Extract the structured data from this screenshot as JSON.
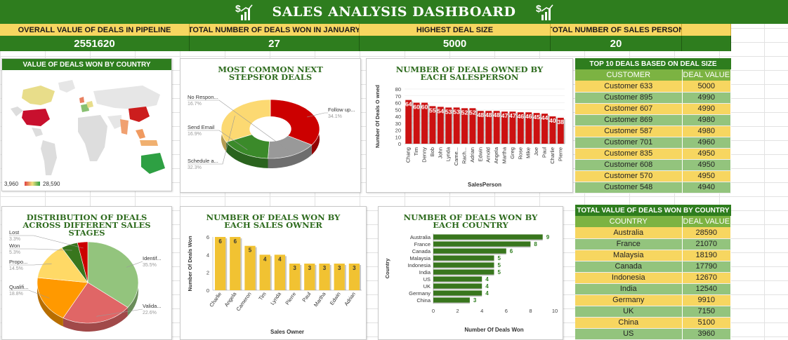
{
  "dashboard": {
    "title": "SALES ANALYSIS DASHBOARD"
  },
  "kpis": [
    {
      "label": "OVERALL VALUE OF DEALS IN PIPELINE",
      "value": "2551620"
    },
    {
      "label": "TOTAL NUMBER OF DEALS WON IN JANUARY",
      "value": "27"
    },
    {
      "label": "HIGHEST DEAL SIZE",
      "value": "5000"
    },
    {
      "label": "TOTAL NUMBER OF SALES PERSON",
      "value": "20"
    }
  ],
  "map": {
    "title": "VALUE OF DEALS WON BY COUNTRY",
    "legend_min": "3,960",
    "legend_max": "28,590",
    "colors": {
      "low": "#e04040",
      "mid": "#f0e080",
      "high": "#2ea043"
    }
  },
  "top_deals": {
    "title": "TOP 10 DEALS BASED ON DEAL SIZE",
    "headers": [
      "CUSTOMER",
      "DEAL VALUE"
    ],
    "rows": [
      [
        "Customer 633",
        "5000"
      ],
      [
        "Customer 895",
        "4990"
      ],
      [
        "Customer 607",
        "4990"
      ],
      [
        "Customer 869",
        "4980"
      ],
      [
        "Customer 587",
        "4980"
      ],
      [
        "Customer 701",
        "4960"
      ],
      [
        "Customer 835",
        "4950"
      ],
      [
        "Customer 608",
        "4950"
      ],
      [
        "Customer 570",
        "4950"
      ],
      [
        "Customer 548",
        "4940"
      ]
    ]
  },
  "country_value": {
    "title": "TOTAL VALUE OF DEALS WON BY COUNTRY",
    "headers": [
      "COUNTRY",
      "DEAL VALUE"
    ],
    "rows": [
      [
        "Australia",
        "28590"
      ],
      [
        "France",
        "21070"
      ],
      [
        "Malaysia",
        "18190"
      ],
      [
        "Canada",
        "17790"
      ],
      [
        "Indonesia",
        "12670"
      ],
      [
        "India",
        "12540"
      ],
      [
        "Germany",
        "9910"
      ],
      [
        "UK",
        "7150"
      ],
      [
        "China",
        "5100"
      ],
      [
        "US",
        "3960"
      ]
    ]
  },
  "chart_data": [
    {
      "id": "next_steps",
      "type": "pie",
      "title": "MOST COMMON NEXT STEPSFOR DEALS",
      "labels": [
        "Follow up...",
        "No Respon...",
        "Send Email",
        "Schedule a..."
      ],
      "percent_labels": [
        "34.1%",
        "16.7%",
        "16.9%",
        "32.3%"
      ],
      "values": [
        34.1,
        16.7,
        16.9,
        32.3
      ],
      "colors": [
        "#cc0000",
        "#999999",
        "#3b8a2a",
        "#fcd972"
      ]
    },
    {
      "id": "deals_owned",
      "type": "bar",
      "title": "NUMBER OF DEALS OWNED BY EACH SALESPERSON",
      "xlabel": "SalesPerson",
      "ylabel": "Number Of Deals O wned",
      "ylim": [
        0,
        80
      ],
      "yticks": [
        0,
        10,
        20,
        30,
        40,
        50,
        60,
        70,
        80
      ],
      "categories": [
        "Chang",
        "Tim",
        "Denny",
        "Bob",
        "John",
        "Lynda",
        "Came...",
        "Rach...",
        "Adrian",
        "Edwin",
        "Arnold",
        "Angela",
        "Martha",
        "Greg",
        "Rose",
        "Mike",
        "Joe",
        "Paul",
        "Charlie",
        "Pierre"
      ],
      "values": [
        64,
        60,
        60,
        55,
        54,
        53,
        53,
        52,
        52,
        48,
        48,
        48,
        47,
        47,
        46,
        46,
        45,
        44,
        40,
        38
      ],
      "color": "#cc1111"
    },
    {
      "id": "stages",
      "type": "pie",
      "title": "DISTRIBUTION OF DEALS ACROSS DIFFERENT SALES STAGES",
      "labels": [
        "Identif...",
        "Valida...",
        "Qualifi...",
        "Propo...",
        "Won",
        "Lost"
      ],
      "percent_labels": [
        "35.5%",
        "22.6%",
        "18.8%",
        "14.5%",
        "5.3%",
        "3.3%"
      ],
      "values": [
        35.5,
        22.6,
        18.8,
        14.5,
        5.3,
        3.3
      ],
      "colors": [
        "#93c47d",
        "#e06666",
        "#ff9900",
        "#ffd966",
        "#38761d",
        "#cc0000"
      ]
    },
    {
      "id": "won_owner",
      "type": "bar",
      "title": "NUMBER OF DEALS WON BY EACH SALES OWNER",
      "xlabel": "Sales Owner",
      "ylabel": "Number Of Deals Won",
      "ylim": [
        0,
        6
      ],
      "yticks": [
        0,
        2,
        4,
        6
      ],
      "categories": [
        "Charlie",
        "Angela",
        "Cameron",
        "Tim",
        "Lynda",
        "Pierre",
        "Paul",
        "Martha",
        "Edwin",
        "Adrian"
      ],
      "values": [
        6,
        6,
        5,
        4,
        4,
        3,
        3,
        3,
        3,
        3
      ],
      "color": "#f1c232"
    },
    {
      "id": "won_country",
      "type": "bar",
      "orientation": "horizontal",
      "title": "NUMBER OF DEALS WON BY EACH COUNTRY",
      "xlabel": "Number Of Deals Won",
      "ylabel": "Country",
      "xlim": [
        0,
        10
      ],
      "xticks": [
        0,
        2,
        4,
        6,
        8,
        10
      ],
      "categories": [
        "Australia",
        "France",
        "Canada",
        "Malaysia",
        "Indonesia",
        "India",
        "US",
        "UK",
        "Germany",
        "China"
      ],
      "values": [
        9,
        8,
        6,
        5,
        5,
        5,
        4,
        4,
        4,
        3
      ],
      "color": "#38761d"
    }
  ]
}
